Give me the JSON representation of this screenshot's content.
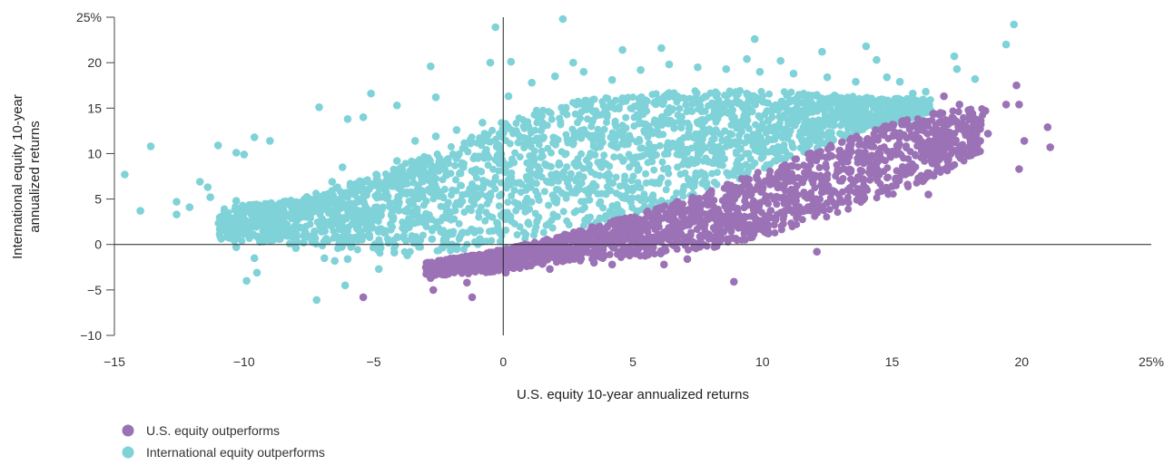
{
  "chart_data": {
    "type": "scatter",
    "xlabel": "U.S. equity 10-year annualized returns",
    "ylabel_lines": [
      "International equity 10-year",
      "annualized returns"
    ],
    "xlim": [
      -15,
      25
    ],
    "ylim": [
      -10,
      25
    ],
    "x_ticks": [
      -15,
      -10,
      -5,
      0,
      5,
      10,
      15,
      20,
      25
    ],
    "x_tick_labels": [
      "−15",
      "−10",
      "−5",
      "0",
      "5",
      "10",
      "15",
      "20",
      "25%"
    ],
    "y_ticks": [
      -10,
      -5,
      0,
      5,
      10,
      15,
      20,
      25
    ],
    "y_tick_labels": [
      "−10",
      "−5",
      "0",
      "5",
      "10",
      "15",
      "20",
      "25%"
    ],
    "grid": false,
    "legend_position": "bottom-left",
    "series": [
      {
        "name": "U.S. equity outperforms",
        "color": "#9b72b5",
        "values": [
          [
            21.0,
            12.9
          ],
          [
            21.1,
            10.7
          ],
          [
            20.1,
            11.4
          ],
          [
            19.9,
            8.3
          ],
          [
            19.9,
            15.4
          ],
          [
            19.8,
            17.5
          ],
          [
            19.4,
            15.4
          ],
          [
            18.7,
            12.2
          ],
          [
            18.6,
            14.7
          ],
          [
            18.4,
            11.4
          ],
          [
            18.2,
            13.8
          ],
          [
            17.8,
            12.4
          ],
          [
            17.6,
            15.4
          ],
          [
            17.4,
            10.3
          ],
          [
            17.3,
            8.6
          ],
          [
            17.0,
            16.3
          ],
          [
            17.0,
            13.1
          ],
          [
            16.4,
            10.8
          ],
          [
            16.4,
            5.5
          ],
          [
            15.8,
            8.2
          ],
          [
            15.6,
            6.6
          ],
          [
            15.0,
            6.4
          ],
          [
            14.6,
            5.9
          ],
          [
            13.9,
            5.3
          ],
          [
            13.4,
            8.0
          ],
          [
            12.1,
            -0.8
          ],
          [
            11.4,
            3.5
          ],
          [
            11.0,
            4.0
          ],
          [
            10.5,
            2.9
          ],
          [
            10.2,
            2.0
          ],
          [
            9.8,
            1.7
          ],
          [
            9.6,
            0.8
          ],
          [
            8.9,
            -4.1
          ],
          [
            8.5,
            1.4
          ],
          [
            7.6,
            0.3
          ],
          [
            7.1,
            -1.6
          ],
          [
            6.5,
            0.9
          ],
          [
            6.2,
            -2.2
          ],
          [
            6.0,
            1.1
          ],
          [
            5.6,
            -0.5
          ],
          [
            4.2,
            -2.2
          ],
          [
            3.5,
            -2.0
          ],
          [
            2.6,
            -1.5
          ],
          [
            1.8,
            -2.7
          ],
          [
            1.0,
            -2.2
          ],
          [
            0.4,
            -2.6
          ],
          [
            0.1,
            -3.1
          ],
          [
            -0.4,
            -1.3
          ],
          [
            -0.8,
            -2.0
          ],
          [
            -1.2,
            -5.8
          ],
          [
            -1.4,
            -4.2
          ],
          [
            -1.6,
            -1.4
          ],
          [
            -2.0,
            -2.7
          ],
          [
            -2.5,
            -2.4
          ],
          [
            -2.7,
            -5.0
          ],
          [
            -2.8,
            -3.7
          ],
          [
            -5.4,
            -5.8
          ]
        ]
      },
      {
        "name": "International equity outperforms",
        "color": "#7ed2d8",
        "values": [
          [
            19.7,
            24.2
          ],
          [
            19.4,
            22.0
          ],
          [
            18.2,
            18.2
          ],
          [
            17.5,
            19.3
          ],
          [
            17.4,
            20.7
          ],
          [
            16.3,
            16.8
          ],
          [
            15.8,
            16.6
          ],
          [
            15.3,
            17.9
          ],
          [
            14.8,
            18.4
          ],
          [
            14.4,
            20.3
          ],
          [
            14.0,
            21.8
          ],
          [
            12.3,
            21.2
          ],
          [
            10.7,
            20.2
          ],
          [
            9.7,
            22.6
          ],
          [
            9.4,
            20.4
          ],
          [
            6.1,
            21.6
          ],
          [
            4.6,
            21.4
          ],
          [
            2.7,
            20.0
          ],
          [
            2.3,
            24.8
          ],
          [
            0.3,
            20.1
          ],
          [
            -0.3,
            23.9
          ],
          [
            -0.5,
            20.0
          ],
          [
            -2.8,
            19.6
          ],
          [
            -2.6,
            16.2
          ],
          [
            -4.1,
            15.3
          ],
          [
            -5.1,
            16.6
          ],
          [
            -7.1,
            15.1
          ],
          [
            -5.4,
            14.0
          ],
          [
            -6.0,
            13.8
          ],
          [
            -9.0,
            11.4
          ],
          [
            -9.6,
            11.8
          ],
          [
            -10.0,
            9.9
          ],
          [
            -10.3,
            10.1
          ],
          [
            -11.0,
            10.9
          ],
          [
            -11.4,
            6.3
          ],
          [
            -11.7,
            6.9
          ],
          [
            -12.1,
            4.1
          ],
          [
            -12.6,
            4.7
          ],
          [
            -12.6,
            3.3
          ],
          [
            -13.6,
            10.8
          ],
          [
            -14.0,
            3.7
          ],
          [
            -14.6,
            7.7
          ],
          [
            -11.3,
            5.2
          ],
          [
            -10.3,
            4.8
          ],
          [
            -10.0,
            2.6
          ],
          [
            -10.3,
            1.2
          ],
          [
            -9.9,
            1.2
          ],
          [
            -9.5,
            0.9
          ],
          [
            -9.6,
            -1.5
          ],
          [
            -9.5,
            -3.1
          ],
          [
            -9.9,
            -4.0
          ],
          [
            -10.3,
            -0.3
          ],
          [
            -9.1,
            2.8
          ],
          [
            -8.6,
            3.8
          ],
          [
            -8.7,
            1.1
          ],
          [
            -8.0,
            -0.4
          ],
          [
            -7.7,
            0.2
          ],
          [
            -7.3,
            1.1
          ],
          [
            -7.0,
            3.8
          ],
          [
            -6.5,
            2.3
          ],
          [
            -6.9,
            -1.5
          ],
          [
            -6.5,
            -1.8
          ],
          [
            -6.0,
            -1.6
          ],
          [
            -6.1,
            -4.5
          ],
          [
            -7.2,
            -6.1
          ],
          [
            -5.6,
            0.5
          ],
          [
            -5.1,
            2.4
          ],
          [
            -4.8,
            -2.7
          ],
          [
            -4.2,
            -0.9
          ],
          [
            -3.7,
            -1.2
          ],
          [
            -3.2,
            0.5
          ],
          [
            -2.4,
            1.4
          ],
          [
            -1.6,
            1.2
          ],
          [
            -0.9,
            0.6
          ],
          [
            -6.6,
            6.9
          ],
          [
            -6.2,
            8.5
          ],
          [
            -5.8,
            5.6
          ],
          [
            -4.9,
            7.7
          ],
          [
            -4.1,
            9.2
          ],
          [
            -3.4,
            11.4
          ],
          [
            -2.6,
            11.9
          ],
          [
            -1.8,
            12.6
          ],
          [
            -0.8,
            13.4
          ],
          [
            0.2,
            16.3
          ],
          [
            1.1,
            17.8
          ],
          [
            2.0,
            18.5
          ],
          [
            3.1,
            19.0
          ],
          [
            4.2,
            18.1
          ],
          [
            5.3,
            19.2
          ],
          [
            6.4,
            19.8
          ],
          [
            7.5,
            19.5
          ],
          [
            8.6,
            19.3
          ],
          [
            9.9,
            19.0
          ],
          [
            11.2,
            18.8
          ],
          [
            12.5,
            18.4
          ],
          [
            13.6,
            17.9
          ]
        ]
      }
    ],
    "dense_bands": [
      {
        "series": "International equity outperforms",
        "band": "upper",
        "x": [
          -11.0,
          -8.0,
          -5.0,
          -2.0,
          0.0,
          2.0,
          5.0,
          8.0,
          11.0,
          14.0,
          16.5
        ],
        "y_high": [
          4.0,
          5.0,
          7.5,
          11.0,
          13.5,
          15.5,
          16.5,
          17.0,
          16.8,
          16.2,
          16.0
        ],
        "y_low": [
          0.5,
          0.0,
          -1.0,
          -0.8,
          -0.5,
          0.8,
          3.2,
          6.0,
          9.2,
          12.5,
          14.5
        ]
      },
      {
        "series": "U.S. equity outperforms",
        "band": "lower",
        "x": [
          -3.0,
          0.0,
          2.0,
          5.0,
          8.0,
          11.0,
          14.0,
          16.5,
          18.5
        ],
        "y_high": [
          -2.0,
          -0.5,
          0.8,
          3.2,
          6.0,
          9.2,
          12.5,
          14.5,
          15.0
        ],
        "y_low": [
          -3.5,
          -3.0,
          -2.0,
          -1.5,
          -0.5,
          1.5,
          4.5,
          7.0,
          10.0
        ]
      }
    ]
  }
}
